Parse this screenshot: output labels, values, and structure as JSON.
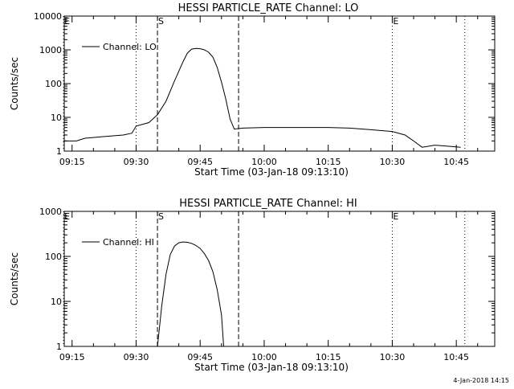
{
  "footer_timestamp": "4-Jan-2018 14:15",
  "chart_data": [
    {
      "type": "line",
      "title": "HESSI PARTICLE_RATE Channel: LO",
      "xlabel": "Start Time (03-Jan-18 09:13:10)",
      "ylabel": "Counts/sec",
      "y_scale": "log",
      "xlim": [
        "09:13:10",
        "10:54"
      ],
      "ylim": [
        1,
        10000
      ],
      "x_ticks": [
        "09:15",
        "09:30",
        "09:45",
        "10:00",
        "10:15",
        "10:30",
        "10:45"
      ],
      "y_ticks": [
        "1",
        "10",
        "100",
        "1000",
        "10000"
      ],
      "legend": {
        "position": "top-left",
        "entries": [
          "Channel: LO"
        ]
      },
      "markers": [
        {
          "label": "E",
          "time": "09:13",
          "style": "dotted"
        },
        {
          "label": "",
          "time": "09:30",
          "style": "dotted"
        },
        {
          "label": "S",
          "time": "09:35",
          "style": "dashed"
        },
        {
          "label": "",
          "time": "09:54",
          "style": "dashed"
        },
        {
          "label": "E",
          "time": "10:30",
          "style": "dotted"
        },
        {
          "label": "",
          "time": "10:47",
          "style": "dotted"
        }
      ],
      "series": [
        {
          "name": "Channel: LO",
          "points": [
            [
              "09:13",
              2.0
            ],
            [
              "09:16",
              2.0
            ],
            [
              "09:18",
              2.4
            ],
            [
              "09:21",
              2.6
            ],
            [
              "09:24",
              2.8
            ],
            [
              "09:27",
              3.0
            ],
            [
              "09:29",
              3.4
            ],
            [
              "09:30",
              5.5
            ],
            [
              "09:33",
              7.0
            ],
            [
              "09:35",
              12
            ],
            [
              "09:37",
              30
            ],
            [
              "09:39",
              120
            ],
            [
              "09:41",
              450
            ],
            [
              "09:42",
              800
            ],
            [
              "09:43",
              1050
            ],
            [
              "09:44",
              1100
            ],
            [
              "09:45",
              1080
            ],
            [
              "09:46",
              1000
            ],
            [
              "09:47",
              850
            ],
            [
              "09:48",
              600
            ],
            [
              "09:49",
              300
            ],
            [
              "09:50",
              110
            ],
            [
              "09:51",
              35
            ],
            [
              "09:52",
              9
            ],
            [
              "09:53",
              4.5
            ],
            [
              "09:55",
              4.8
            ],
            [
              "10:00",
              5.0
            ],
            [
              "10:05",
              5.0
            ],
            [
              "10:10",
              5.0
            ],
            [
              "10:15",
              5.0
            ],
            [
              "10:20",
              4.8
            ],
            [
              "10:25",
              4.3
            ],
            [
              "10:28",
              4.0
            ],
            [
              "10:30",
              3.8
            ],
            [
              "10:33",
              3.0
            ],
            [
              "10:35",
              2.0
            ],
            [
              "10:37",
              1.3
            ],
            [
              "10:40",
              1.5
            ],
            [
              "10:43",
              1.4
            ],
            [
              "10:46",
              1.3
            ]
          ]
        }
      ]
    },
    {
      "type": "line",
      "title": "HESSI PARTICLE_RATE Channel: HI",
      "xlabel": "Start Time (03-Jan-18 09:13:10)",
      "ylabel": "Counts/sec",
      "y_scale": "log",
      "xlim": [
        "09:13:10",
        "10:54"
      ],
      "ylim": [
        1,
        1000
      ],
      "x_ticks": [
        "09:15",
        "09:30",
        "09:45",
        "10:00",
        "10:15",
        "10:30",
        "10:45"
      ],
      "y_ticks": [
        "1",
        "10",
        "100",
        "1000"
      ],
      "legend": {
        "position": "top-left",
        "entries": [
          "Channel: HI"
        ]
      },
      "markers": [
        {
          "label": "E",
          "time": "09:13",
          "style": "dotted"
        },
        {
          "label": "",
          "time": "09:30",
          "style": "dotted"
        },
        {
          "label": "S",
          "time": "09:35",
          "style": "dashed"
        },
        {
          "label": "",
          "time": "09:54",
          "style": "dashed"
        },
        {
          "label": "E",
          "time": "10:30",
          "style": "dotted"
        },
        {
          "label": "",
          "time": "10:47",
          "style": "dotted"
        }
      ],
      "series": [
        {
          "name": "Channel: HI",
          "points": [
            [
              "09:35",
              1.0
            ],
            [
              "09:36",
              8
            ],
            [
              "09:37",
              40
            ],
            [
              "09:38",
              110
            ],
            [
              "09:39",
              170
            ],
            [
              "09:40",
              200
            ],
            [
              "09:41",
              210
            ],
            [
              "09:42",
              205
            ],
            [
              "09:43",
              195
            ],
            [
              "09:44",
              175
            ],
            [
              "09:45",
              150
            ],
            [
              "09:46",
              115
            ],
            [
              "09:47",
              80
            ],
            [
              "09:48",
              45
            ],
            [
              "09:49",
              18
            ],
            [
              "09:50",
              5
            ],
            [
              "09:50.5",
              1.0
            ]
          ]
        }
      ]
    }
  ]
}
